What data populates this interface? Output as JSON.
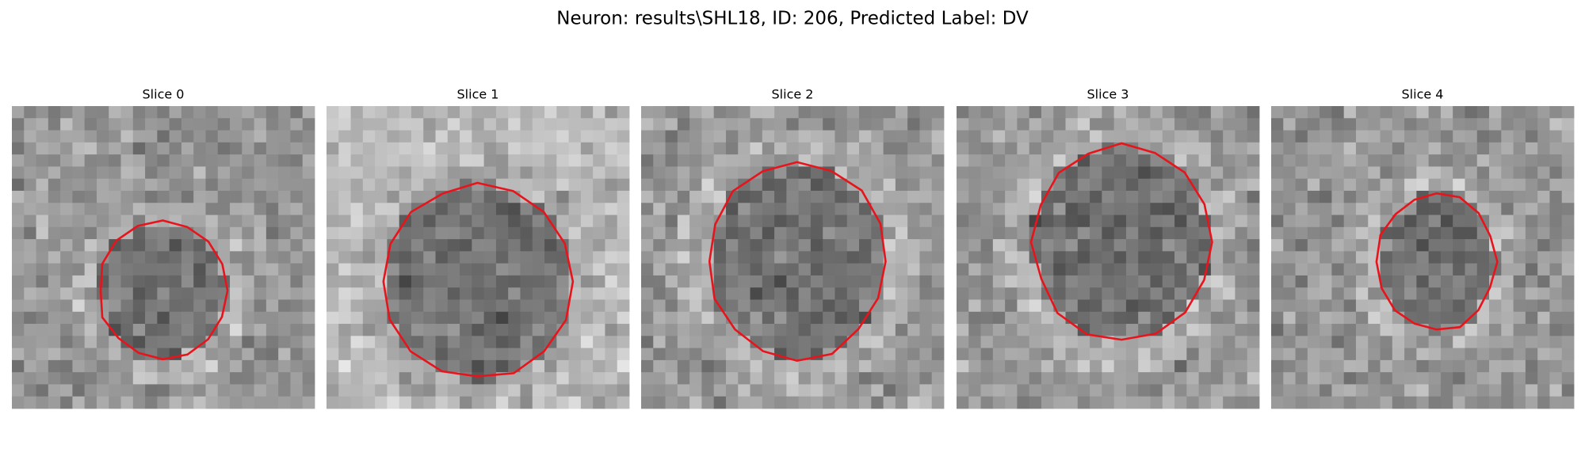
{
  "header": {
    "title": "Neuron: results\\SHL18, ID: 206, Predicted Label: DV"
  },
  "panels": [
    {
      "title": "Slice 0"
    },
    {
      "title": "Slice 1"
    },
    {
      "title": "Slice 2"
    },
    {
      "title": "Slice 3"
    },
    {
      "title": "Slice 4"
    }
  ]
}
